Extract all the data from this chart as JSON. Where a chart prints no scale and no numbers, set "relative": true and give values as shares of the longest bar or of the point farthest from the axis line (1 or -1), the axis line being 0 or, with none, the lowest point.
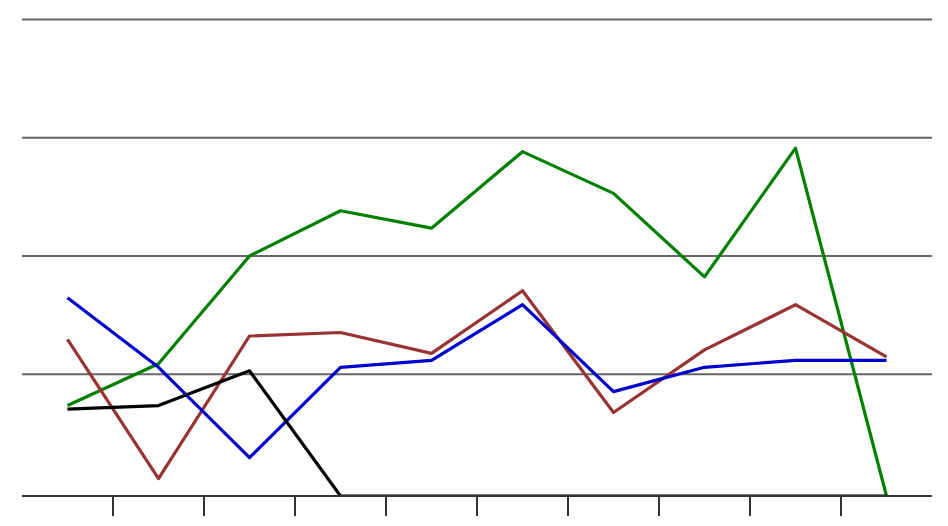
{
  "chart_data": {
    "type": "line",
    "relative": true,
    "ref_lines": [
      {
        "axis": "y",
        "value": 0.35,
        "color": "#666666"
      },
      {
        "axis": "y",
        "value": 0.69,
        "color": "#666666"
      },
      {
        "axis": "y",
        "value": 1.03,
        "color": "#666666"
      },
      {
        "axis": "y",
        "value": 1.37,
        "color": "#666666"
      }
    ],
    "marker": "none",
    "line_style": "solid",
    "categories": [
      null,
      null,
      null,
      null,
      null,
      null,
      null,
      null,
      null,
      null
    ],
    "series": [
      {
        "color": "#008000",
        "values": [
          0.26,
          0.38,
          0.69,
          0.82,
          0.77,
          0.99,
          0.87,
          0.63,
          1.0,
          0
        ]
      },
      {
        "color": "#993333",
        "values": [
          0.45,
          0.05,
          0.46,
          0.47,
          0.41,
          0.59,
          0.24,
          0.42,
          0.55,
          0.4
        ]
      },
      {
        "color": "#0000cc",
        "values": [
          0.57,
          0.37,
          0.11,
          0.37,
          0.39,
          0.55,
          0.3,
          0.37,
          0.39,
          0.39
        ]
      },
      {
        "color": "#000000",
        "values": [
          0.25,
          0.26,
          0.36,
          0,
          0,
          0,
          0,
          0,
          0,
          0
        ]
      }
    ]
  }
}
